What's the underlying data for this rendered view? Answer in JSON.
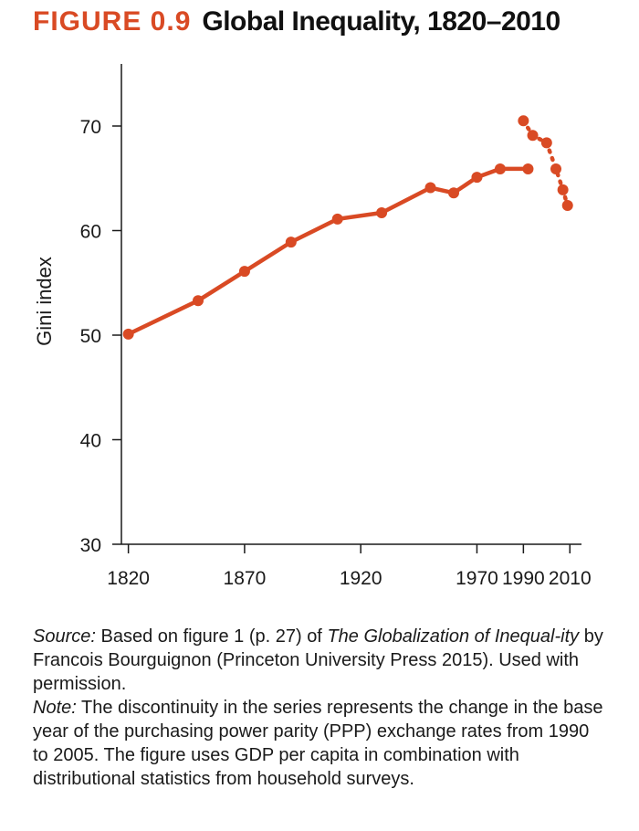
{
  "figure": {
    "label": "FIGURE 0.9",
    "title": "Global Inequality, 1820–2010"
  },
  "colors": {
    "series": "#d94a24",
    "axis": "#1a1a1a",
    "label": "#d94a24"
  },
  "chart_data": {
    "type": "line",
    "title": "Global Inequality, 1820–2010",
    "xlabel": "",
    "ylabel": "Gini index",
    "xlim": [
      1817,
      2015
    ],
    "ylim": [
      30,
      72
    ],
    "x_ticks": [
      1820,
      1870,
      1920,
      1970,
      1990,
      2010
    ],
    "y_ticks": [
      30,
      40,
      50,
      60,
      70
    ],
    "grid": false,
    "series": [
      {
        "style": "solid",
        "x": [
          1820,
          1850,
          1870,
          1890,
          1910,
          1929,
          1950,
          1960,
          1970,
          1980,
          1992
        ],
        "y": [
          50.1,
          53.3,
          56.1,
          58.9,
          61.1,
          61.7,
          64.1,
          63.6,
          65.1,
          65.9,
          65.9
        ]
      },
      {
        "style": "dotted",
        "x": [
          1990,
          1994,
          2000,
          2004,
          2007,
          2009
        ],
        "y": [
          70.5,
          69.1,
          68.4,
          65.9,
          63.9,
          62.4
        ]
      }
    ]
  },
  "caption": {
    "source_label": "Source:",
    "source_text_1": " Based on figure 1 (p. 27) of ",
    "source_book": "The Globalization of Inequal-ity",
    "source_text_2": " by Francois Bourguignon (Princeton University Press 2015). Used with permission.",
    "note_label": "Note:",
    "note_text": " The discontinuity in the series represents the change in the base year of the purchasing power parity (PPP) exchange rates from 1990 to 2005. The figure uses GDP per capita in combination with distributional statistics from household surveys."
  }
}
